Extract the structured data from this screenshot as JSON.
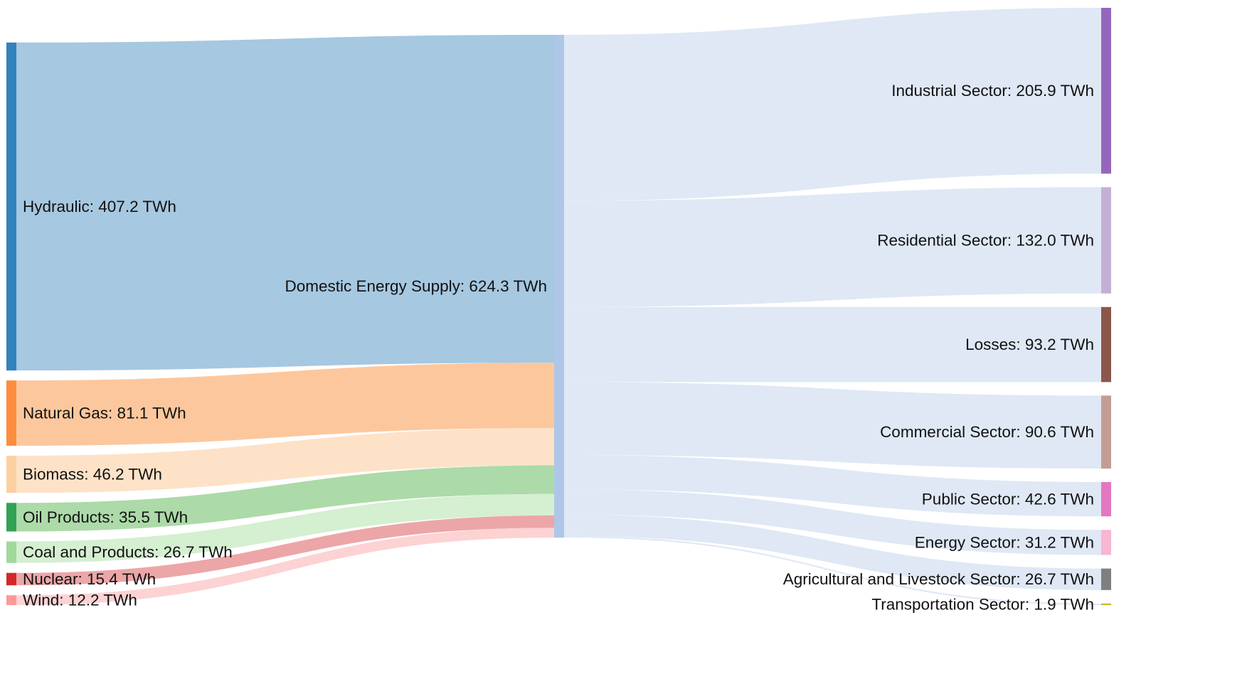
{
  "chart_data": {
    "type": "sankey",
    "unit": "TWh",
    "sources": [
      {
        "name": "Hydraulic",
        "value": 407.2,
        "label": "Hydraulic: 407.2 TWh",
        "color": "#3182bd",
        "link_color": "#a6c8e0"
      },
      {
        "name": "Natural Gas",
        "value": 81.1,
        "label": "Natural Gas: 81.1 TWh",
        "color": "#fd8d3c",
        "link_color": "#fdc79d"
      },
      {
        "name": "Biomass",
        "value": 46.2,
        "label": "Biomass: 46.2 TWh",
        "color": "#fdd0a2",
        "link_color": "#fde2c8"
      },
      {
        "name": "Oil Products",
        "value": 35.5,
        "label": "Oil Products: 35.5 TWh",
        "color": "#31a354",
        "link_color": "#acdaa8"
      },
      {
        "name": "Coal and Products",
        "value": 26.7,
        "label": "Coal and Products: 26.7 TWh",
        "color": "#a1d99b",
        "link_color": "#d5efd1"
      },
      {
        "name": "Nuclear",
        "value": 15.4,
        "label": "Nuclear: 15.4 TWh",
        "color": "#d62728",
        "link_color": "#eca6a8"
      },
      {
        "name": "Wind",
        "value": 12.2,
        "label": "Wind: 12.2 TWh",
        "color": "#ff9896",
        "link_color": "#fdd2d3"
      }
    ],
    "hub": {
      "name": "Domestic Energy Supply",
      "value": 624.3,
      "label": "Domestic Energy Supply: 624.3 TWh",
      "color": "#aec7e8",
      "link_color": "#dfe8f4"
    },
    "targets": [
      {
        "name": "Industrial Sector",
        "value": 205.9,
        "label": "Industrial Sector: 205.9 TWh",
        "color": "#9467bd"
      },
      {
        "name": "Residential Sector",
        "value": 132.0,
        "label": "Residential Sector: 132.0 TWh",
        "color": "#c5b0d5"
      },
      {
        "name": "Losses",
        "value": 93.2,
        "label": "Losses: 93.2 TWh",
        "color": "#8c564b"
      },
      {
        "name": "Commercial Sector",
        "value": 90.6,
        "label": "Commercial Sector: 90.6 TWh",
        "color": "#c49c94"
      },
      {
        "name": "Public Sector",
        "value": 42.6,
        "label": "Public Sector: 42.6 TWh",
        "color": "#e377c2"
      },
      {
        "name": "Energy Sector",
        "value": 31.2,
        "label": "Energy Sector: 31.2 TWh",
        "color": "#f7b6d2"
      },
      {
        "name": "Agricultural and Livestock Sector",
        "value": 26.7,
        "label": "Agricultural and Livestock Sector: 26.7 TWh",
        "color": "#7f7f7f"
      },
      {
        "name": "Transportation Sector",
        "value": 1.9,
        "label": "Transportation Sector: 1.9 TWh",
        "color": "#bcbd22"
      }
    ]
  }
}
